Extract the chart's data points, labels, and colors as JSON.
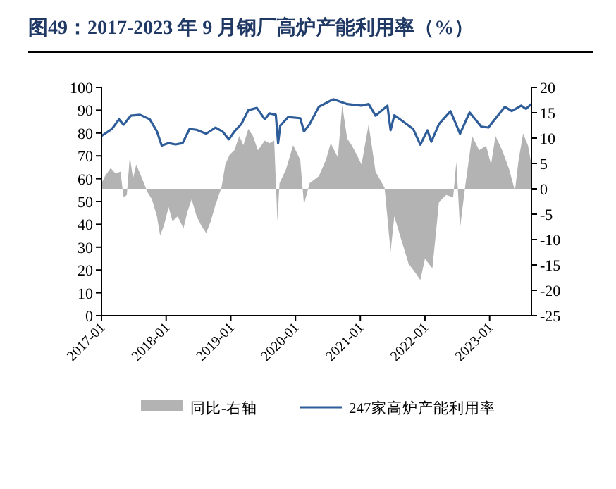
{
  "chart_data": {
    "type": "line",
    "title": "图49：2017-2023 年 9 月钢厂高炉产能利用率（%）",
    "xlim": [
      "2017-01-01",
      "2023-08-25"
    ],
    "xticks": [
      "2017-01",
      "2018-01",
      "2019-01",
      "2020-01",
      "2021-01",
      "2022-01",
      "2023-01"
    ],
    "ylim": [
      0,
      100
    ],
    "yticks": [
      0,
      10,
      20,
      30,
      40,
      50,
      60,
      70,
      80,
      90,
      100
    ],
    "y2lim": [
      -25,
      20
    ],
    "y2ticks": [
      -25,
      -20,
      -15,
      -10,
      -5,
      0,
      5,
      10,
      15,
      20
    ],
    "legend": "bottom",
    "grid": false,
    "series": [
      {
        "name": "同比-右轴",
        "type": "area",
        "axis": "y2",
        "color": "#b3b3b3",
        "x": [
          "2017-01-01",
          "2017-01-21",
          "2017-02-22",
          "2017-03-22",
          "2017-04-18",
          "2017-05-06",
          "2017-05-24",
          "2017-06-10",
          "2017-06-28",
          "2017-07-16",
          "2017-08-07",
          "2017-09-18",
          "2017-10-13",
          "2017-11-10",
          "2017-11-28",
          "2017-12-19",
          "2018-01-15",
          "2018-02-06",
          "2018-03-07",
          "2018-04-09",
          "2018-05-01",
          "2018-05-25",
          "2018-06-22",
          "2018-07-19",
          "2018-08-15",
          "2018-09-10",
          "2018-10-07",
          "2018-11-09",
          "2018-12-01",
          "2018-12-25",
          "2019-01-21",
          "2019-02-18",
          "2019-03-13",
          "2019-04-10",
          "2019-05-06",
          "2019-06-03",
          "2019-07-12",
          "2019-08-07",
          "2019-09-03",
          "2019-09-21",
          "2019-10-03",
          "2019-11-09",
          "2019-12-19",
          "2020-01-28",
          "2020-02-18",
          "2020-03-21",
          "2020-05-12",
          "2020-06-21",
          "2020-07-18",
          "2020-08-27",
          "2020-09-21",
          "2020-10-19",
          "2020-11-15",
          "2020-12-12",
          "2021-01-08",
          "2021-02-17",
          "2021-03-28",
          "2021-05-18",
          "2021-06-21",
          "2021-07-12",
          "2021-08-21",
          "2021-10-01",
          "2021-11-09",
          "2021-12-06",
          "2022-01-01",
          "2022-02-12",
          "2022-03-21",
          "2022-05-01",
          "2022-06-09",
          "2022-06-27",
          "2022-07-18",
          "2022-08-15",
          "2022-09-24",
          "2022-11-03",
          "2022-12-12",
          "2023-01-09",
          "2023-02-03",
          "2023-03-13",
          "2023-04-21",
          "2023-05-24",
          "2023-06-12",
          "2023-07-09",
          "2023-08-06",
          "2023-08-25"
        ],
        "values": [
          1.1,
          2.5,
          4.1,
          3.0,
          3.4,
          -1.7,
          -1.2,
          6.4,
          2.0,
          4.8,
          3.0,
          -0.7,
          -2.1,
          -5.4,
          -9.2,
          -7.3,
          -3.6,
          -6.4,
          -5.4,
          -7.8,
          -4.5,
          -2.1,
          -5.4,
          -7.3,
          -8.7,
          -6.4,
          -3.1,
          0.2,
          4.8,
          6.7,
          7.6,
          10.4,
          8.6,
          11.8,
          10.4,
          7.6,
          9.5,
          9.0,
          9.5,
          -6.4,
          1.1,
          3.9,
          8.6,
          5.7,
          -3.1,
          1.1,
          2.5,
          5.7,
          9.0,
          6.2,
          16.5,
          9.9,
          8.5,
          6.7,
          4.8,
          12.7,
          3.4,
          0.2,
          -12.4,
          -5.4,
          -10.1,
          -14.8,
          -16.6,
          -18.0,
          -13.8,
          -15.7,
          -2.6,
          -1.2,
          -1.7,
          5.3,
          -7.8,
          0.2,
          10.4,
          7.6,
          8.5,
          4.8,
          10.4,
          7.6,
          3.9,
          -0.4,
          5.3,
          10.9,
          8.5,
          4.8
        ]
      },
      {
        "name": "247家高炉产能利用率",
        "axis": "y",
        "color": "#2e5d9a",
        "x": [
          "2017-01-01",
          "2017-03-01",
          "2017-04-10",
          "2017-05-06",
          "2017-06-15",
          "2017-08-07",
          "2017-10-01",
          "2017-11-10",
          "2017-12-07",
          "2018-01-15",
          "2018-02-24",
          "2018-04-04",
          "2018-05-13",
          "2018-06-22",
          "2018-08-15",
          "2018-10-07",
          "2018-11-15",
          "2018-12-21",
          "2019-01-21",
          "2019-03-01",
          "2019-04-10",
          "2019-05-28",
          "2019-07-12",
          "2019-08-07",
          "2019-09-12",
          "2019-09-25",
          "2019-10-07",
          "2019-11-21",
          "2020-01-28",
          "2020-02-18",
          "2020-03-21",
          "2020-05-12",
          "2020-08-01",
          "2020-10-19",
          "2021-01-08",
          "2021-02-17",
          "2021-03-28",
          "2021-06-03",
          "2021-06-21",
          "2021-07-12",
          "2021-09-04",
          "2021-10-27",
          "2021-12-06",
          "2022-01-15",
          "2022-02-06",
          "2022-03-21",
          "2022-05-25",
          "2022-07-18",
          "2022-09-10",
          "2022-11-15",
          "2022-12-25",
          "2023-03-28",
          "2023-05-06",
          "2023-06-28",
          "2023-07-25",
          "2023-08-25"
        ],
        "values": [
          78.7,
          81.8,
          86,
          83.6,
          87.6,
          88,
          86,
          80.7,
          74.5,
          75.6,
          75,
          75.6,
          81.8,
          81.4,
          79.7,
          82.4,
          80.7,
          77.2,
          80.7,
          83.9,
          90,
          91,
          86,
          88.6,
          88,
          75.6,
          83.2,
          87,
          86.5,
          80.7,
          83.9,
          91.5,
          94.8,
          92.7,
          92,
          92.7,
          87.6,
          92,
          81.2,
          87.8,
          84.8,
          81.7,
          74.9,
          81.2,
          76.2,
          83.9,
          89.6,
          79.7,
          89,
          82.8,
          82.4,
          91.5,
          89.6,
          92,
          90.6,
          92.7
        ]
      }
    ]
  }
}
